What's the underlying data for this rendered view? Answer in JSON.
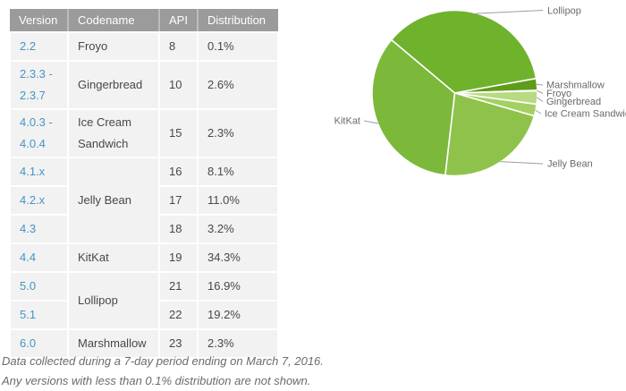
{
  "table": {
    "headers": [
      "Version",
      "Codename",
      "API",
      "Distribution"
    ],
    "rows": [
      {
        "version": "2.2",
        "codename": "Froyo",
        "api": "8",
        "distribution": "0.1%"
      },
      {
        "version": "2.3.3 - 2.3.7",
        "codename": "Gingerbread",
        "api": "10",
        "distribution": "2.6%"
      },
      {
        "version": "4.0.3 - 4.0.4",
        "codename": "Ice Cream Sandwich",
        "api": "15",
        "distribution": "2.3%"
      },
      {
        "version": "4.1.x",
        "codename": "Jelly Bean",
        "api": "16",
        "distribution": "8.1%"
      },
      {
        "version": "4.2.x",
        "api": "17",
        "distribution": "11.0%"
      },
      {
        "version": "4.3",
        "api": "18",
        "distribution": "3.2%"
      },
      {
        "version": "4.4",
        "codename": "KitKat",
        "api": "19",
        "distribution": "34.3%"
      },
      {
        "version": "5.0",
        "codename": "Lollipop",
        "api": "21",
        "distribution": "16.9%"
      },
      {
        "version": "5.1",
        "api": "22",
        "distribution": "19.2%"
      },
      {
        "version": "6.0",
        "codename": "Marshmallow",
        "api": "23",
        "distribution": "2.3%"
      }
    ]
  },
  "notes": {
    "line1": "Data collected during a 7-day period ending on March 7, 2016.",
    "line2": "Any versions with less than 0.1% distribution are not shown."
  },
  "colors": {
    "header_bg": "#9b9b9b",
    "row_bg": "#f2f2f2",
    "version_link": "#4495c5",
    "pie_label_text": "#696969",
    "leader_line": "#9e9e9e",
    "note_text": "#6b6b6b"
  },
  "chart_data": {
    "type": "pie",
    "title": "",
    "legend_position": "outside-labels-with-leader-lines",
    "start_angle_deg": 140,
    "direction": "clockwise",
    "slices": [
      {
        "label": "Lollipop",
        "value": 36.1,
        "color": "#6fb22c"
      },
      {
        "label": "Marshmallow",
        "value": 2.3,
        "color": "#5f9c19"
      },
      {
        "label": "Froyo",
        "value": 0.1,
        "color": "#cfe6a8"
      },
      {
        "label": "Gingerbread",
        "value": 2.6,
        "color": "#b8da85"
      },
      {
        "label": "Ice Cream Sandwich",
        "value": 2.3,
        "color": "#a4d062"
      },
      {
        "label": "Jelly Bean",
        "value": 22.4,
        "color": "#8ec24b"
      },
      {
        "label": "KitKat",
        "value": 34.3,
        "color": "#7cb83a"
      }
    ]
  }
}
